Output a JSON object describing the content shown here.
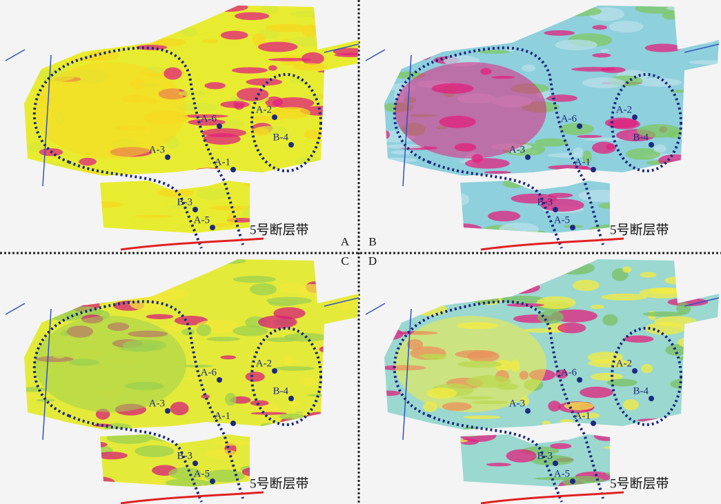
{
  "panels": [
    {
      "label": "A",
      "fault_label": "5号断层带",
      "wells": [
        "A-6",
        "A-2",
        "B-4",
        "A-3",
        "A-1",
        "B-3",
        "A-5"
      ]
    },
    {
      "label": "B",
      "fault_label": "5号断层带",
      "wells": [
        "A-6",
        "A-2",
        "B-4",
        "A-3",
        "A-1",
        "B-3",
        "A-5"
      ]
    },
    {
      "label": "C",
      "fault_label": "5号断层带",
      "wells": [
        "A-6",
        "A-2",
        "B-4",
        "A-3",
        "A-1",
        "B-3",
        "A-5"
      ]
    },
    {
      "label": "D",
      "fault_label": "5号断层带",
      "wells": [
        "A-6",
        "A-2",
        "B-4",
        "A-3",
        "A-1",
        "B-3",
        "A-5"
      ]
    }
  ]
}
